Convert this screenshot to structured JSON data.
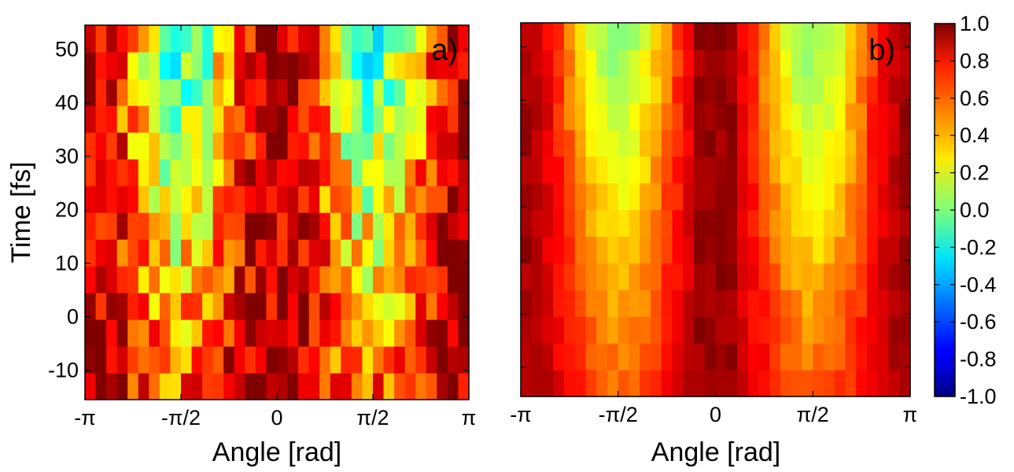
{
  "chart_data": [
    {
      "type": "heatmap",
      "panel_label": "a)",
      "xlabel": "Angle [rad]",
      "ylabel": "Time [fs]",
      "xlim": [
        -3.1416,
        3.1416
      ],
      "ylim": [
        -15.5,
        54.5
      ],
      "x_ticks": [
        {
          "value": -3.1416,
          "label": "-π"
        },
        {
          "value": -1.5708,
          "label": "-π/2"
        },
        {
          "value": 0,
          "label": "0"
        },
        {
          "value": 1.5708,
          "label": "π/2"
        },
        {
          "value": 3.1416,
          "label": "π"
        }
      ],
      "y_ticks": [
        {
          "value": -10,
          "label": "-10"
        },
        {
          "value": 0,
          "label": "0"
        },
        {
          "value": 10,
          "label": "10"
        },
        {
          "value": 20,
          "label": "20"
        },
        {
          "value": 30,
          "label": "30"
        },
        {
          "value": 40,
          "label": "40"
        },
        {
          "value": 50,
          "label": "50"
        }
      ],
      "n_angle_bins": 36,
      "time_rows": [
        -13,
        -8,
        -3,
        2,
        7,
        12,
        17,
        22,
        27,
        32,
        37,
        42,
        47,
        52
      ],
      "profile": {
        "edge": 0.92,
        "center": 0.9,
        "trough_lowest": 0.55,
        "trough_highest": -0.15,
        "noise": 0.28,
        "seed": 7
      }
    },
    {
      "type": "heatmap",
      "panel_label": "b)",
      "xlabel": "Angle [rad]",
      "ylabel": "",
      "xlim": [
        -3.1416,
        3.1416
      ],
      "ylim": [
        -15.5,
        54.5
      ],
      "x_ticks": [
        {
          "value": -3.1416,
          "label": "-π"
        },
        {
          "value": -1.5708,
          "label": "-π/2"
        },
        {
          "value": 0,
          "label": "0"
        },
        {
          "value": 1.5708,
          "label": "π/2"
        },
        {
          "value": 3.1416,
          "label": "π"
        }
      ],
      "y_ticks": [
        {
          "value": -10,
          "label": ""
        },
        {
          "value": 0,
          "label": ""
        },
        {
          "value": 10,
          "label": ""
        },
        {
          "value": 20,
          "label": ""
        },
        {
          "value": 30,
          "label": ""
        },
        {
          "value": 40,
          "label": ""
        },
        {
          "value": 50,
          "label": ""
        }
      ],
      "n_angle_bins": 36,
      "time_rows": [
        -13,
        -8,
        -3,
        2,
        7,
        12,
        17,
        22,
        27,
        32,
        37,
        42,
        47,
        52
      ],
      "profile": {
        "edge": 0.93,
        "center": 0.95,
        "trough_lowest": 0.55,
        "trough_highest": 0.02,
        "noise": 0.06,
        "seed": 3
      }
    }
  ],
  "colorbar": {
    "colormap": "jet",
    "vmin": -1.0,
    "vmax": 1.0,
    "ticks": [
      {
        "value": 1.0,
        "label": "1.0"
      },
      {
        "value": 0.8,
        "label": "0.8"
      },
      {
        "value": 0.6,
        "label": "0.6"
      },
      {
        "value": 0.4,
        "label": "0.4"
      },
      {
        "value": 0.2,
        "label": "0.2"
      },
      {
        "value": 0.0,
        "label": "0.0"
      },
      {
        "value": -0.2,
        "label": "-0.2"
      },
      {
        "value": -0.4,
        "label": "-0.4"
      },
      {
        "value": -0.6,
        "label": "-0.6"
      },
      {
        "value": -0.8,
        "label": "-0.8"
      },
      {
        "value": -1.0,
        "label": "-1.0"
      }
    ]
  }
}
